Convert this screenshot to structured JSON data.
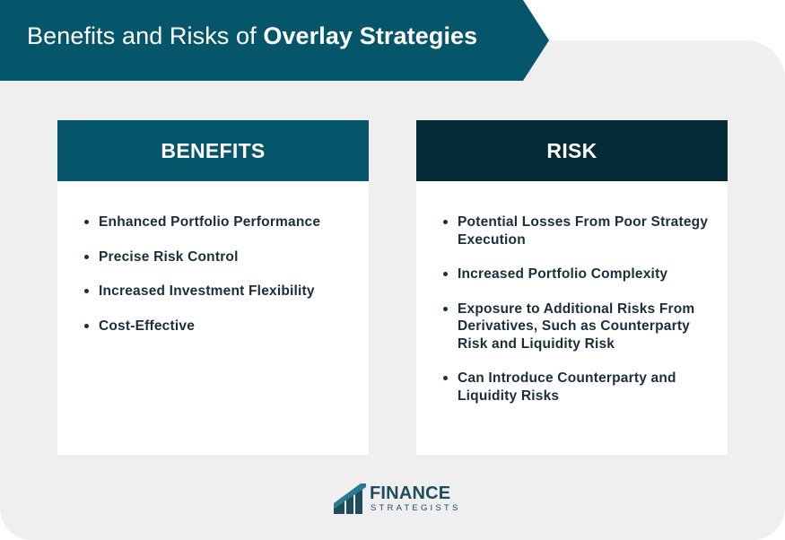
{
  "title": {
    "prefix": "Benefits and Risks of",
    "bold": "Overlay Strategies"
  },
  "benefits": {
    "heading": "BENEFITS",
    "items": [
      "Enhanced Portfolio Performance",
      "Precise Risk Control",
      "Increased Investment Flexibility",
      "Cost-Effective"
    ]
  },
  "risks": {
    "heading": "RISK",
    "items": [
      "Potential Losses From Poor Strategy Execution",
      "Increased Portfolio Complexity",
      "Exposure to Additional Risks From Derivatives, Such as Counterparty Risk and Liquidity Risk",
      "Can Introduce Counterparty and Liquidity Risks"
    ]
  },
  "logo": {
    "main": "FINANCE",
    "sub": "STRATEGISTS",
    "icon": "finance-strategists-logo-icon"
  },
  "colors": {
    "banner": "#06566b",
    "risk_header": "#032c36",
    "background": "#efefef",
    "text": "#1a2f3a"
  }
}
